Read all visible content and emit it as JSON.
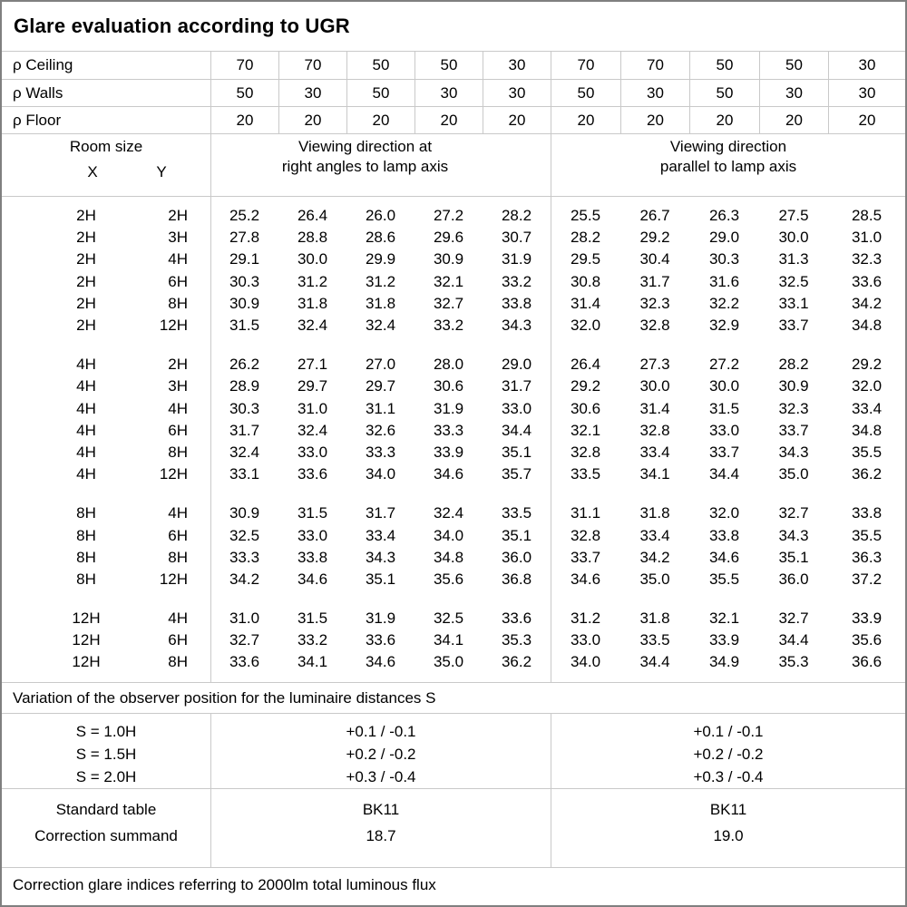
{
  "title": "Glare evaluation according to UGR",
  "reflectance_rows": [
    {
      "label": "ρ Ceiling",
      "values": [
        "70",
        "70",
        "50",
        "50",
        "30",
        "70",
        "70",
        "50",
        "50",
        "30"
      ]
    },
    {
      "label": "ρ Walls",
      "values": [
        "50",
        "30",
        "50",
        "30",
        "30",
        "50",
        "30",
        "50",
        "30",
        "30"
      ]
    },
    {
      "label": "ρ Floor",
      "values": [
        "20",
        "20",
        "20",
        "20",
        "20",
        "20",
        "20",
        "20",
        "20",
        "20"
      ]
    }
  ],
  "room_size_header": {
    "title": "Room size",
    "x_label": "X",
    "y_label": "Y"
  },
  "direction_headers": {
    "left": [
      "Viewing direction at",
      "right angles to lamp axis"
    ],
    "right": [
      "Viewing direction",
      "parallel to lamp axis"
    ]
  },
  "ugr_groups": [
    {
      "rows": [
        {
          "x": "2H",
          "y": "2H",
          "left": [
            "25.2",
            "26.4",
            "26.0",
            "27.2",
            "28.2"
          ],
          "right": [
            "25.5",
            "26.7",
            "26.3",
            "27.5",
            "28.5"
          ]
        },
        {
          "x": "2H",
          "y": "3H",
          "left": [
            "27.8",
            "28.8",
            "28.6",
            "29.6",
            "30.7"
          ],
          "right": [
            "28.2",
            "29.2",
            "29.0",
            "30.0",
            "31.0"
          ]
        },
        {
          "x": "2H",
          "y": "4H",
          "left": [
            "29.1",
            "30.0",
            "29.9",
            "30.9",
            "31.9"
          ],
          "right": [
            "29.5",
            "30.4",
            "30.3",
            "31.3",
            "32.3"
          ]
        },
        {
          "x": "2H",
          "y": "6H",
          "left": [
            "30.3",
            "31.2",
            "31.2",
            "32.1",
            "33.2"
          ],
          "right": [
            "30.8",
            "31.7",
            "31.6",
            "32.5",
            "33.6"
          ]
        },
        {
          "x": "2H",
          "y": "8H",
          "left": [
            "30.9",
            "31.8",
            "31.8",
            "32.7",
            "33.8"
          ],
          "right": [
            "31.4",
            "32.3",
            "32.2",
            "33.1",
            "34.2"
          ]
        },
        {
          "x": "2H",
          "y": "12H",
          "left": [
            "31.5",
            "32.4",
            "32.4",
            "33.2",
            "34.3"
          ],
          "right": [
            "32.0",
            "32.8",
            "32.9",
            "33.7",
            "34.8"
          ]
        }
      ]
    },
    {
      "rows": [
        {
          "x": "4H",
          "y": "2H",
          "left": [
            "26.2",
            "27.1",
            "27.0",
            "28.0",
            "29.0"
          ],
          "right": [
            "26.4",
            "27.3",
            "27.2",
            "28.2",
            "29.2"
          ]
        },
        {
          "x": "4H",
          "y": "3H",
          "left": [
            "28.9",
            "29.7",
            "29.7",
            "30.6",
            "31.7"
          ],
          "right": [
            "29.2",
            "30.0",
            "30.0",
            "30.9",
            "32.0"
          ]
        },
        {
          "x": "4H",
          "y": "4H",
          "left": [
            "30.3",
            "31.0",
            "31.1",
            "31.9",
            "33.0"
          ],
          "right": [
            "30.6",
            "31.4",
            "31.5",
            "32.3",
            "33.4"
          ]
        },
        {
          "x": "4H",
          "y": "6H",
          "left": [
            "31.7",
            "32.4",
            "32.6",
            "33.3",
            "34.4"
          ],
          "right": [
            "32.1",
            "32.8",
            "33.0",
            "33.7",
            "34.8"
          ]
        },
        {
          "x": "4H",
          "y": "8H",
          "left": [
            "32.4",
            "33.0",
            "33.3",
            "33.9",
            "35.1"
          ],
          "right": [
            "32.8",
            "33.4",
            "33.7",
            "34.3",
            "35.5"
          ]
        },
        {
          "x": "4H",
          "y": "12H",
          "left": [
            "33.1",
            "33.6",
            "34.0",
            "34.6",
            "35.7"
          ],
          "right": [
            "33.5",
            "34.1",
            "34.4",
            "35.0",
            "36.2"
          ]
        }
      ]
    },
    {
      "rows": [
        {
          "x": "8H",
          "y": "4H",
          "left": [
            "30.9",
            "31.5",
            "31.7",
            "32.4",
            "33.5"
          ],
          "right": [
            "31.1",
            "31.8",
            "32.0",
            "32.7",
            "33.8"
          ]
        },
        {
          "x": "8H",
          "y": "6H",
          "left": [
            "32.5",
            "33.0",
            "33.4",
            "34.0",
            "35.1"
          ],
          "right": [
            "32.8",
            "33.4",
            "33.8",
            "34.3",
            "35.5"
          ]
        },
        {
          "x": "8H",
          "y": "8H",
          "left": [
            "33.3",
            "33.8",
            "34.3",
            "34.8",
            "36.0"
          ],
          "right": [
            "33.7",
            "34.2",
            "34.6",
            "35.1",
            "36.3"
          ]
        },
        {
          "x": "8H",
          "y": "12H",
          "left": [
            "34.2",
            "34.6",
            "35.1",
            "35.6",
            "36.8"
          ],
          "right": [
            "34.6",
            "35.0",
            "35.5",
            "36.0",
            "37.2"
          ]
        }
      ]
    },
    {
      "rows": [
        {
          "x": "12H",
          "y": "4H",
          "left": [
            "31.0",
            "31.5",
            "31.9",
            "32.5",
            "33.6"
          ],
          "right": [
            "31.2",
            "31.8",
            "32.1",
            "32.7",
            "33.9"
          ]
        },
        {
          "x": "12H",
          "y": "6H",
          "left": [
            "32.7",
            "33.2",
            "33.6",
            "34.1",
            "35.3"
          ],
          "right": [
            "33.0",
            "33.5",
            "33.9",
            "34.4",
            "35.6"
          ]
        },
        {
          "x": "12H",
          "y": "8H",
          "left": [
            "33.6",
            "34.1",
            "34.6",
            "35.0",
            "36.2"
          ],
          "right": [
            "34.0",
            "34.4",
            "34.9",
            "35.3",
            "36.6"
          ]
        }
      ]
    }
  ],
  "variation_note": "Variation of the observer position for the luminaire distances S",
  "variation_rows": [
    {
      "label": "S = 1.0H",
      "left": "+0.1 / -0.1",
      "right": "+0.1 / -0.1"
    },
    {
      "label": "S = 1.5H",
      "left": "+0.2 / -0.2",
      "right": "+0.2 / -0.2"
    },
    {
      "label": "S = 2.0H",
      "left": "+0.3 / -0.4",
      "right": "+0.3 / -0.4"
    }
  ],
  "summary": {
    "labels": [
      "Standard table",
      "Correction summand"
    ],
    "left": [
      "BK11",
      "18.7"
    ],
    "right": [
      "BK11",
      "19.0"
    ]
  },
  "footer_note": "Correction glare indices referring to 2000lm total luminous flux",
  "colors": {
    "grid_line": "#c9c9c9",
    "outer_border": "#7f7f7f",
    "text": "#000000",
    "background": "#ffffff"
  }
}
